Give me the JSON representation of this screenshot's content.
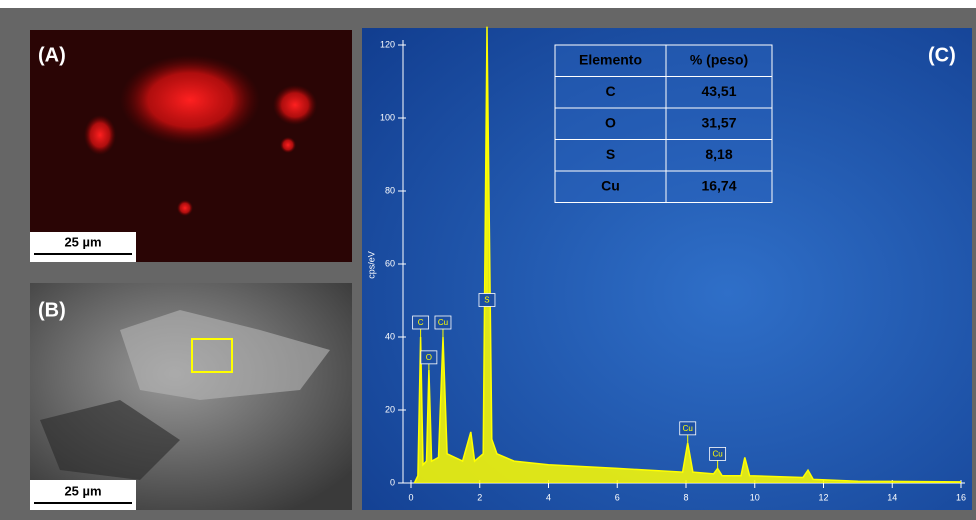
{
  "panels": {
    "a_label": "(A)",
    "b_label": "(B)",
    "c_label": "(C)",
    "a_scale": "25 µm",
    "b_scale": "25 µm"
  },
  "chart_data": {
    "type": "line",
    "color": "#ffff00",
    "y_label": "cps/eV",
    "x": [
      0.1,
      0.2,
      0.28,
      0.35,
      0.45,
      0.52,
      0.6,
      0.8,
      0.93,
      1.05,
      1.5,
      1.74,
      1.85,
      2.1,
      2.21,
      2.35,
      2.5,
      3,
      4,
      6,
      7.9,
      8.05,
      8.2,
      8.8,
      8.92,
      9.05,
      9.6,
      9.71,
      9.85,
      11.4,
      11.55,
      11.7,
      13,
      16
    ],
    "values": [
      0,
      2,
      40,
      5,
      6,
      31,
      6,
      7,
      40,
      8,
      6,
      14,
      6,
      8,
      125,
      12,
      8,
      6,
      5,
      4,
      3,
      11,
      3,
      2.5,
      4,
      2,
      2,
      7,
      2,
      1.5,
      3.5,
      1,
      0.5,
      0.3
    ],
    "xlim": [
      0,
      16
    ],
    "ylim": [
      0,
      120
    ],
    "xticks": [
      0,
      2,
      4,
      6,
      8,
      10,
      12,
      14,
      16
    ],
    "yticks": [
      0,
      20,
      40,
      60,
      80,
      100,
      120
    ],
    "peak_labels": [
      {
        "text": "C",
        "x": 0.28
      },
      {
        "text": "O",
        "x": 0.52
      },
      {
        "text": "Cu",
        "x": 0.93
      },
      {
        "text": "S",
        "x": 2.21
      },
      {
        "text": "Cu",
        "x": 8.05
      },
      {
        "text": "Cu",
        "x": 8.92
      }
    ],
    "table": {
      "header": [
        "Elemento",
        "% (peso)"
      ],
      "rows": [
        [
          "C",
          "43,51"
        ],
        [
          "O",
          "31,57"
        ],
        [
          "S",
          "8,18"
        ],
        [
          "Cu",
          "16,74"
        ]
      ]
    }
  }
}
